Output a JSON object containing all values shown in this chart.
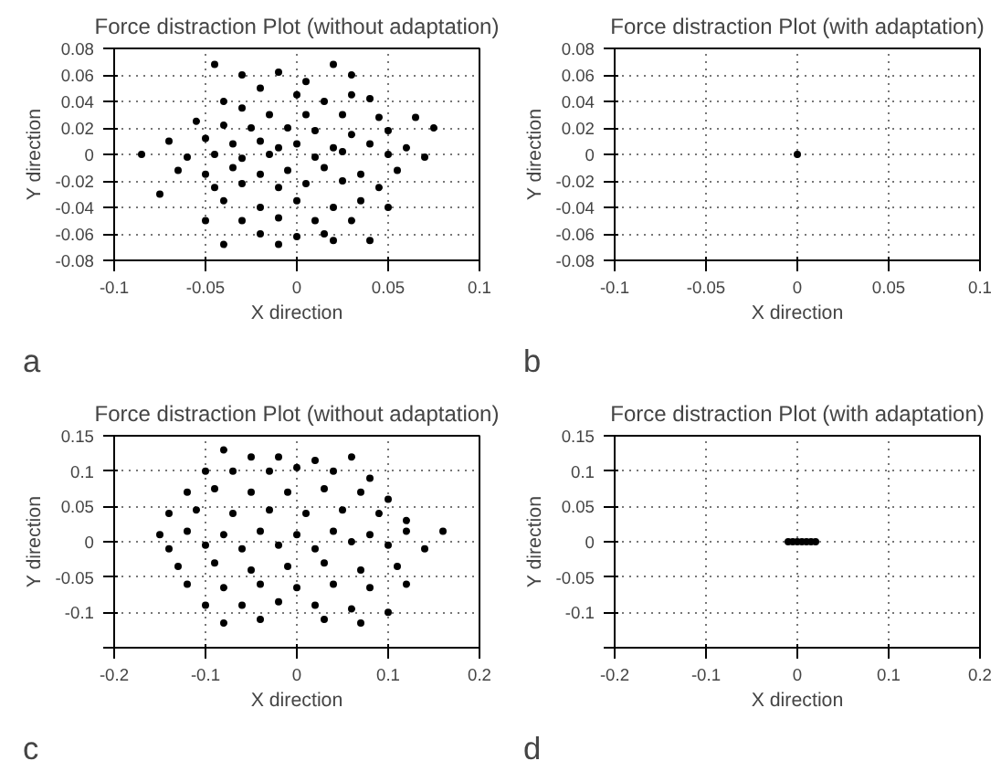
{
  "chart_data": [
    {
      "type": "scatter",
      "title": "Force distraction Plot (without adaptation)",
      "xlabel": "X direction",
      "ylabel": "Y direction",
      "annotations": [
        "a"
      ],
      "grid": true,
      "marker": "circle",
      "xlim": [
        -0.1,
        0.1
      ],
      "xticks": [
        -0.1,
        -0.05,
        0,
        0.05,
        0.1
      ],
      "ylim": [
        -0.08,
        0.08
      ],
      "yticks": [
        -0.08,
        -0.06,
        -0.04,
        -0.02,
        0,
        0.02,
        0.04,
        0.06,
        0.08
      ],
      "series": [
        {
          "color": "#000000",
          "x": [
            -0.045,
            -0.03,
            -0.01,
            0.005,
            0.02,
            0.03,
            -0.02,
            0.0,
            0.015,
            0.03,
            0.04,
            -0.04,
            -0.03,
            -0.015,
            0.005,
            0.025,
            0.045,
            0.065,
            -0.055,
            -0.04,
            -0.025,
            -0.005,
            0.01,
            0.03,
            0.05,
            0.075,
            -0.07,
            -0.05,
            -0.035,
            -0.02,
            -0.01,
            0.0,
            0.02,
            0.04,
            0.06,
            -0.085,
            -0.06,
            -0.045,
            -0.03,
            -0.015,
            0.01,
            0.025,
            0.05,
            0.07,
            -0.065,
            -0.05,
            -0.035,
            -0.02,
            -0.005,
            0.015,
            0.035,
            0.055,
            -0.075,
            -0.045,
            -0.03,
            -0.01,
            0.005,
            0.025,
            0.045,
            -0.04,
            -0.02,
            0.0,
            0.02,
            0.035,
            0.05,
            -0.05,
            -0.03,
            -0.01,
            0.01,
            0.03,
            -0.02,
            0.0,
            0.015,
            0.04,
            -0.04,
            -0.01,
            0.02
          ],
          "values": [
            0.068,
            0.06,
            0.062,
            0.055,
            0.068,
            0.06,
            0.05,
            0.045,
            0.04,
            0.045,
            0.042,
            0.04,
            0.035,
            0.03,
            0.03,
            0.03,
            0.028,
            0.028,
            0.025,
            0.022,
            0.02,
            0.02,
            0.018,
            0.015,
            0.018,
            0.02,
            0.01,
            0.012,
            0.008,
            0.01,
            0.005,
            0.008,
            0.005,
            0.008,
            0.005,
            0.0,
            -0.002,
            0.0,
            -0.003,
            0.0,
            -0.002,
            0.002,
            0.0,
            -0.002,
            -0.012,
            -0.015,
            -0.01,
            -0.015,
            -0.012,
            -0.01,
            -0.015,
            -0.012,
            -0.03,
            -0.025,
            -0.022,
            -0.025,
            -0.022,
            -0.02,
            -0.025,
            -0.035,
            -0.04,
            -0.035,
            -0.04,
            -0.035,
            -0.04,
            -0.05,
            -0.05,
            -0.048,
            -0.05,
            -0.05,
            -0.06,
            -0.062,
            -0.06,
            -0.065,
            -0.068,
            -0.068,
            -0.065
          ]
        }
      ]
    },
    {
      "type": "scatter",
      "title": "Force distraction Plot (with adaptation)",
      "xlabel": "X direction",
      "ylabel": "Y direction",
      "annotations": [
        "b"
      ],
      "grid": true,
      "marker": "circle",
      "xlim": [
        -0.1,
        0.1
      ],
      "xticks": [
        -0.1,
        -0.05,
        0,
        0.05,
        0.1
      ],
      "ylim": [
        -0.08,
        0.08
      ],
      "yticks": [
        -0.08,
        -0.06,
        -0.04,
        -0.02,
        0,
        0.02,
        0.04,
        0.06,
        0.08
      ],
      "series": [
        {
          "color": "#000000",
          "x": [
            0.0
          ],
          "values": [
            0.0
          ]
        }
      ]
    },
    {
      "type": "scatter",
      "title": "Force distraction Plot (without adaptation)",
      "xlabel": "X direction",
      "ylabel": "Y direction",
      "annotations": [
        "c"
      ],
      "grid": true,
      "marker": "circle",
      "xlim": [
        -0.2,
        0.2
      ],
      "xticks": [
        -0.2,
        -0.1,
        0,
        0.1,
        0.2
      ],
      "ylim": [
        -0.15,
        0.15
      ],
      "yticks": [
        {
          "value": -0.15,
          "label": null
        },
        -0.1,
        -0.05,
        0,
        0.05,
        0.1,
        0.15
      ],
      "series": [
        {
          "color": "#000000",
          "x": [
            -0.08,
            -0.05,
            -0.02,
            0.02,
            0.06,
            -0.1,
            -0.07,
            -0.03,
            0.0,
            0.04,
            0.08,
            -0.12,
            -0.09,
            -0.05,
            -0.01,
            0.03,
            0.07,
            0.1,
            -0.14,
            -0.11,
            -0.07,
            -0.03,
            0.01,
            0.05,
            0.09,
            0.12,
            -0.15,
            -0.12,
            -0.08,
            -0.04,
            0.0,
            0.04,
            0.08,
            0.12,
            0.16,
            -0.14,
            -0.1,
            -0.06,
            -0.02,
            0.02,
            0.06,
            0.1,
            0.14,
            -0.13,
            -0.09,
            -0.05,
            -0.01,
            0.03,
            0.07,
            0.11,
            -0.12,
            -0.08,
            -0.04,
            0.0,
            0.04,
            0.08,
            0.12,
            -0.1,
            -0.06,
            -0.02,
            0.02,
            0.06,
            0.1,
            -0.08,
            -0.04,
            0.03,
            0.07
          ],
          "values": [
            0.13,
            0.12,
            0.12,
            0.115,
            0.12,
            0.1,
            0.1,
            0.1,
            0.105,
            0.1,
            0.09,
            0.07,
            0.075,
            0.07,
            0.07,
            0.075,
            0.07,
            0.06,
            0.04,
            0.045,
            0.04,
            0.045,
            0.04,
            0.045,
            0.04,
            0.03,
            0.01,
            0.015,
            0.01,
            0.015,
            0.01,
            0.015,
            0.01,
            0.015,
            0.015,
            -0.01,
            -0.005,
            -0.01,
            -0.005,
            -0.01,
            0.0,
            -0.005,
            -0.01,
            -0.035,
            -0.03,
            -0.04,
            -0.035,
            -0.03,
            -0.04,
            -0.035,
            -0.06,
            -0.065,
            -0.06,
            -0.065,
            -0.06,
            -0.065,
            -0.06,
            -0.09,
            -0.09,
            -0.085,
            -0.09,
            -0.095,
            -0.1,
            -0.115,
            -0.11,
            -0.11,
            -0.115
          ]
        }
      ]
    },
    {
      "type": "scatter",
      "title": "Force distraction Plot (with adaptation)",
      "xlabel": "X direction",
      "ylabel": "Y direction",
      "annotations": [
        "d"
      ],
      "grid": true,
      "marker": "circle",
      "xlim": [
        -0.2,
        0.2
      ],
      "xticks": [
        -0.2,
        -0.1,
        0,
        0.1,
        0.2
      ],
      "ylim": [
        -0.15,
        0.15
      ],
      "yticks": [
        {
          "value": -0.15,
          "label": null
        },
        -0.1,
        -0.05,
        0,
        0.05,
        0.1,
        0.15
      ],
      "series": [
        {
          "color": "#000000",
          "x": [
            -0.01,
            -0.005,
            0.0,
            0.005,
            0.01,
            0.015,
            0.02
          ],
          "values": [
            0,
            0,
            0,
            0,
            0,
            0,
            0
          ]
        }
      ]
    }
  ]
}
